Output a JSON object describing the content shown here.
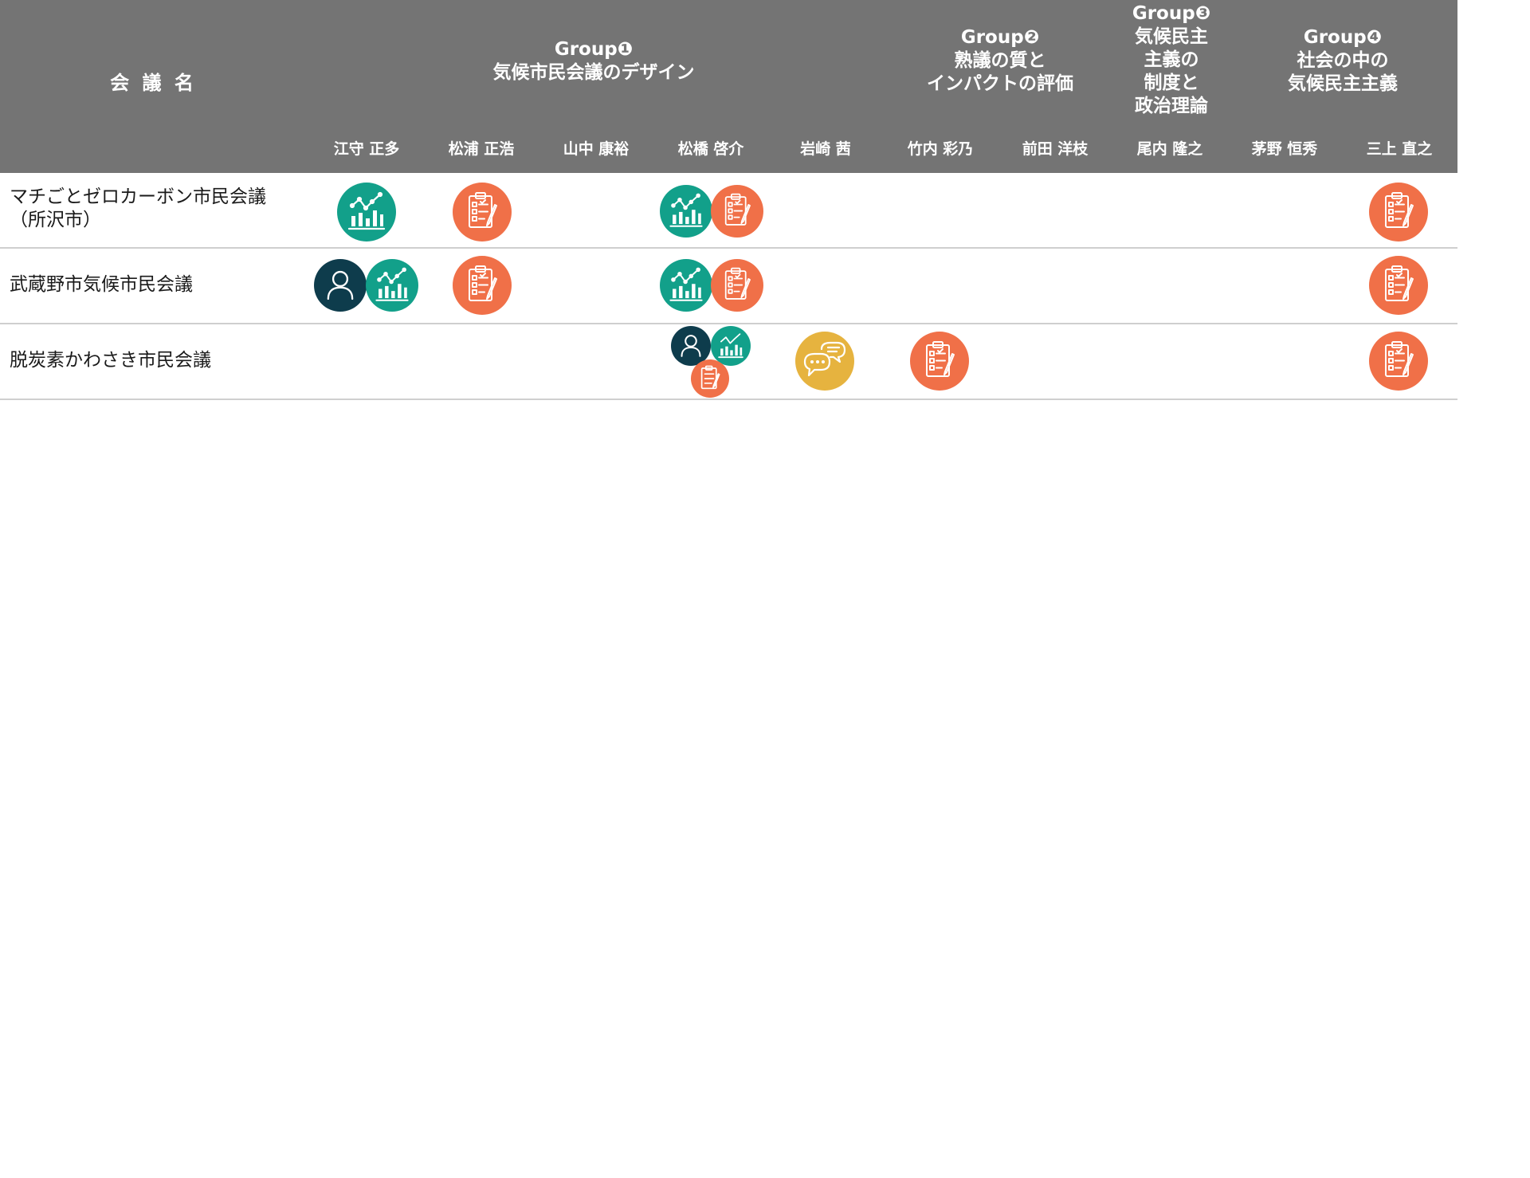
{
  "header": {
    "meeting_name_label": "会 議 名",
    "groups": [
      {
        "lines": [
          "Group❶",
          "気候市民会議のデザイン"
        ]
      },
      {
        "lines": [
          "Group❷",
          "熟議の質と",
          "インパクトの評価"
        ]
      },
      {
        "lines": [
          "Group❸",
          "気候民主",
          "主義の",
          "制度と",
          "政治理論"
        ]
      },
      {
        "lines": [
          "Group❹",
          "社会の中の",
          "気候民主主義"
        ]
      }
    ],
    "people": [
      "江守 正多",
      "松浦 正浩",
      "山中 康裕",
      "松橋 啓介",
      "岩崎 茜",
      "竹内 彩乃",
      "前田 洋枝",
      "尾内 隆之",
      "茅野 恒秀",
      "三上 直之"
    ]
  },
  "rows": [
    {
      "label_lines": [
        "マチごとゼロカーボン市民会議",
        "（所沢市）"
      ]
    },
    {
      "label_lines": [
        "武蔵野市気候市民会議"
      ]
    },
    {
      "label_lines": [
        "脱炭素かわさき市民会議"
      ]
    }
  ],
  "icons": {
    "analysis": {
      "name": "bar-chart-icon",
      "color": "#12a08a"
    },
    "survey": {
      "name": "clipboard-checklist-icon",
      "color": "#f07048"
    },
    "participant": {
      "name": "person-icon",
      "color": "#0e3c4c"
    },
    "dialogue": {
      "name": "speech-bubbles-icon",
      "color": "#e6b33f"
    }
  }
}
